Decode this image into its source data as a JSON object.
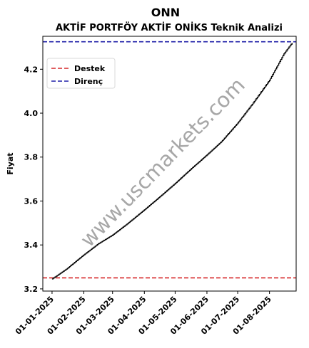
{
  "chart_data": {
    "type": "line",
    "title": "ONN",
    "subtitle": "AKTİF PORTFÖY AKTİF ONİKS Teknik Analizi",
    "xlabel": "",
    "ylabel": "Fiyat",
    "ylim": [
      3.19,
      4.35
    ],
    "xlim": [
      "2024-12-23",
      "2025-08-27"
    ],
    "x_ticks": [
      "01-01-2025",
      "01-02-2025",
      "01-03-2025",
      "01-04-2025",
      "01-05-2025",
      "01-06-2025",
      "01-07-2025",
      "01-08-2025"
    ],
    "y_ticks": [
      "3.2",
      "3.4",
      "3.6",
      "3.8",
      "4.0",
      "4.2"
    ],
    "grid": false,
    "legend_position": "upper-left",
    "watermark": "www.uscmarkets.com",
    "series": [
      {
        "name": "ONN",
        "color": "#000000",
        "points": [
          [
            "2025-01-01",
            3.245
          ],
          [
            "2025-01-15",
            3.29
          ],
          [
            "2025-02-01",
            3.355
          ],
          [
            "2025-02-15",
            3.405
          ],
          [
            "2025-03-01",
            3.445
          ],
          [
            "2025-03-15",
            3.495
          ],
          [
            "2025-04-01",
            3.56
          ],
          [
            "2025-04-15",
            3.615
          ],
          [
            "2025-05-01",
            3.68
          ],
          [
            "2025-05-15",
            3.74
          ],
          [
            "2025-06-01",
            3.81
          ],
          [
            "2025-06-15",
            3.87
          ],
          [
            "2025-07-01",
            3.955
          ],
          [
            "2025-07-15",
            4.04
          ],
          [
            "2025-08-01",
            4.15
          ],
          [
            "2025-08-15",
            4.27
          ],
          [
            "2025-08-23",
            4.32
          ]
        ]
      }
    ],
    "lines": [
      {
        "name": "Destek",
        "value": 3.25,
        "color": "#d62728",
        "style": "dashed"
      },
      {
        "name": "Direnç",
        "value": 4.325,
        "color": "#1f1fa8",
        "style": "dashed"
      }
    ]
  }
}
